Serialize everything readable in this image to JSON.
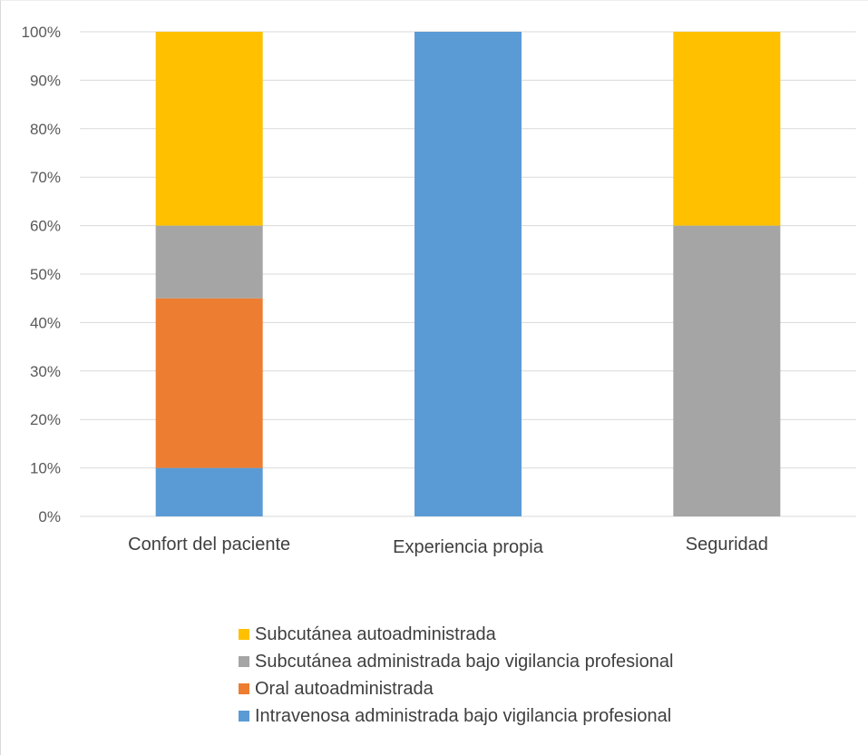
{
  "chart_data": {
    "type": "bar",
    "stacked": true,
    "percent_stacked": true,
    "categories": [
      "Confort del paciente",
      "Experiencia propia",
      "Seguridad"
    ],
    "series": [
      {
        "name": "Intravenosa administrada bajo vigilancia profesional",
        "color": "#5b9bd5",
        "values": [
          10,
          100,
          0
        ]
      },
      {
        "name": "Oral autoadministrada",
        "color": "#ed7d31",
        "values": [
          35,
          0,
          0
        ]
      },
      {
        "name": "Subcutánea administrada bajo vigilancia profesional",
        "color": "#a5a5a5",
        "values": [
          15,
          0,
          60
        ]
      },
      {
        "name": "Subcutánea autoadministrada",
        "color": "#ffc000",
        "values": [
          40,
          0,
          40
        ]
      }
    ],
    "y_ticks": [
      "0%",
      "10%",
      "20%",
      "30%",
      "40%",
      "50%",
      "60%",
      "70%",
      "80%",
      "90%",
      "100%"
    ],
    "ylim": [
      0,
      100
    ],
    "grid": true,
    "legend_position": "bottom",
    "legend_order": [
      "Subcutánea autoadministrada",
      "Subcutánea administrada bajo vigilancia profesional",
      "Oral autoadministrada",
      "Intravenosa administrada bajo vigilancia profesional"
    ]
  }
}
